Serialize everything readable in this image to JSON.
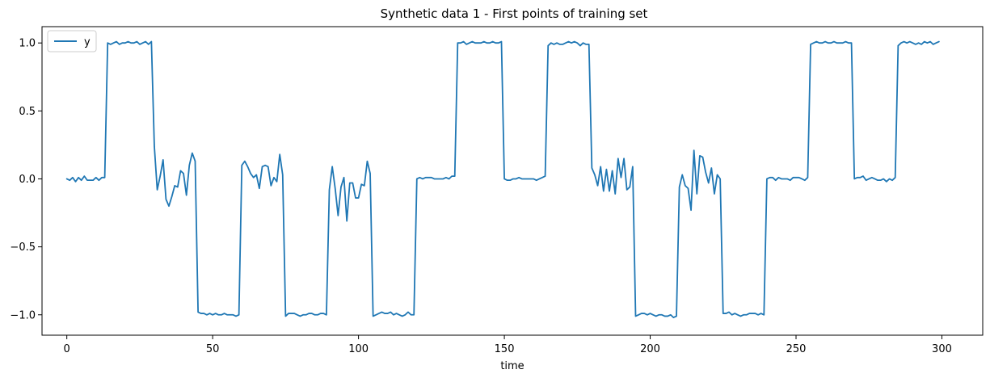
{
  "chart_data": {
    "type": "line",
    "title": "Synthetic data 1 - First points of training set",
    "xlabel": "time",
    "ylabel": "",
    "xlim": [
      -8.5,
      314
    ],
    "ylim": [
      -1.15,
      1.12
    ],
    "xticks": [
      0,
      50,
      100,
      150,
      200,
      250,
      300
    ],
    "xtick_labels": [
      "0",
      "50",
      "100",
      "150",
      "200",
      "250",
      "300"
    ],
    "yticks": [
      -1.0,
      -0.5,
      0.0,
      0.5,
      1.0
    ],
    "ytick_labels": [
      "−1.0",
      "−0.5",
      "0.0",
      "0.5",
      "1.0"
    ],
    "grid": false,
    "legend_position": "top-left",
    "series": [
      {
        "name": "y",
        "color": "#1f77b4",
        "x_start": 0,
        "x_step": 1,
        "values": [
          0.0,
          -0.01,
          0.01,
          -0.02,
          0.01,
          -0.01,
          0.02,
          -0.01,
          -0.01,
          -0.01,
          0.01,
          -0.01,
          0.01,
          0.01,
          1.0,
          0.99,
          1.0,
          1.01,
          0.99,
          1.0,
          1.0,
          1.01,
          1.0,
          1.0,
          1.01,
          0.99,
          1.0,
          1.01,
          0.99,
          1.01,
          0.24,
          -0.08,
          0.02,
          0.14,
          -0.15,
          -0.2,
          -0.13,
          -0.05,
          -0.06,
          0.06,
          0.04,
          -0.12,
          0.1,
          0.19,
          0.13,
          -0.98,
          -0.99,
          -0.99,
          -1.0,
          -0.99,
          -1.0,
          -0.99,
          -1.0,
          -1.0,
          -0.99,
          -1.0,
          -1.0,
          -1.0,
          -1.01,
          -1.0,
          0.1,
          0.13,
          0.09,
          0.04,
          0.01,
          0.03,
          -0.07,
          0.09,
          0.1,
          0.09,
          -0.05,
          0.01,
          -0.02,
          0.18,
          0.03,
          -1.01,
          -0.99,
          -0.99,
          -0.99,
          -1.0,
          -1.01,
          -1.0,
          -1.0,
          -0.99,
          -0.99,
          -1.0,
          -1.0,
          -0.99,
          -0.99,
          -1.0,
          -0.08,
          0.09,
          -0.07,
          -0.27,
          -0.06,
          0.01,
          -0.31,
          -0.03,
          -0.03,
          -0.14,
          -0.14,
          -0.04,
          -0.05,
          0.13,
          0.04,
          -1.01,
          -1.0,
          -0.99,
          -0.98,
          -0.99,
          -0.99,
          -0.98,
          -1.0,
          -0.99,
          -1.0,
          -1.01,
          -1.0,
          -0.98,
          -1.0,
          -1.0,
          0.0,
          0.01,
          0.0,
          0.01,
          0.01,
          0.01,
          0.0,
          0.0,
          0.0,
          0.0,
          0.01,
          0.0,
          0.02,
          0.02,
          1.0,
          1.0,
          1.01,
          0.99,
          1.0,
          1.01,
          1.0,
          1.0,
          1.0,
          1.01,
          1.0,
          1.0,
          1.01,
          1.0,
          1.0,
          1.01,
          0.0,
          -0.01,
          -0.01,
          0.0,
          0.0,
          0.01,
          0.0,
          0.0,
          0.0,
          0.0,
          0.0,
          -0.01,
          0.0,
          0.01,
          0.02,
          0.98,
          1.0,
          0.99,
          1.0,
          0.99,
          0.99,
          1.0,
          1.01,
          1.0,
          1.01,
          1.0,
          0.98,
          1.0,
          0.99,
          0.99,
          0.08,
          0.03,
          -0.05,
          0.09,
          -0.09,
          0.07,
          -0.09,
          0.06,
          -0.11,
          0.15,
          0.01,
          0.15,
          -0.08,
          -0.06,
          0.09,
          -1.01,
          -1.0,
          -0.99,
          -0.99,
          -1.0,
          -0.99,
          -1.0,
          -1.01,
          -1.0,
          -1.0,
          -1.01,
          -1.01,
          -1.0,
          -1.02,
          -1.01,
          -0.06,
          0.03,
          -0.05,
          -0.07,
          -0.23,
          0.21,
          -0.11,
          0.17,
          0.16,
          0.05,
          -0.03,
          0.08,
          -0.11,
          0.03,
          0.0,
          -0.99,
          -0.99,
          -0.98,
          -1.0,
          -0.99,
          -1.0,
          -1.01,
          -1.0,
          -1.0,
          -0.99,
          -0.99,
          -0.99,
          -1.0,
          -0.99,
          -1.0,
          0.0,
          0.01,
          0.01,
          -0.01,
          0.01,
          0.0,
          0.0,
          0.0,
          -0.01,
          0.01,
          0.01,
          0.01,
          0.0,
          -0.01,
          0.01,
          0.99,
          1.0,
          1.01,
          1.0,
          1.0,
          1.01,
          1.0,
          1.0,
          1.01,
          1.0,
          1.0,
          1.0,
          1.01,
          1.0,
          1.0,
          0.0,
          0.01,
          0.01,
          0.02,
          -0.01,
          0.0,
          0.01,
          0.0,
          -0.01,
          -0.01,
          0.0,
          -0.02,
          0.0,
          -0.01,
          0.01,
          0.98,
          1.0,
          1.01,
          1.0,
          1.01,
          1.0,
          0.99,
          1.0,
          0.99,
          1.01,
          1.0,
          1.01,
          0.99,
          1.0,
          1.01
        ]
      }
    ]
  }
}
